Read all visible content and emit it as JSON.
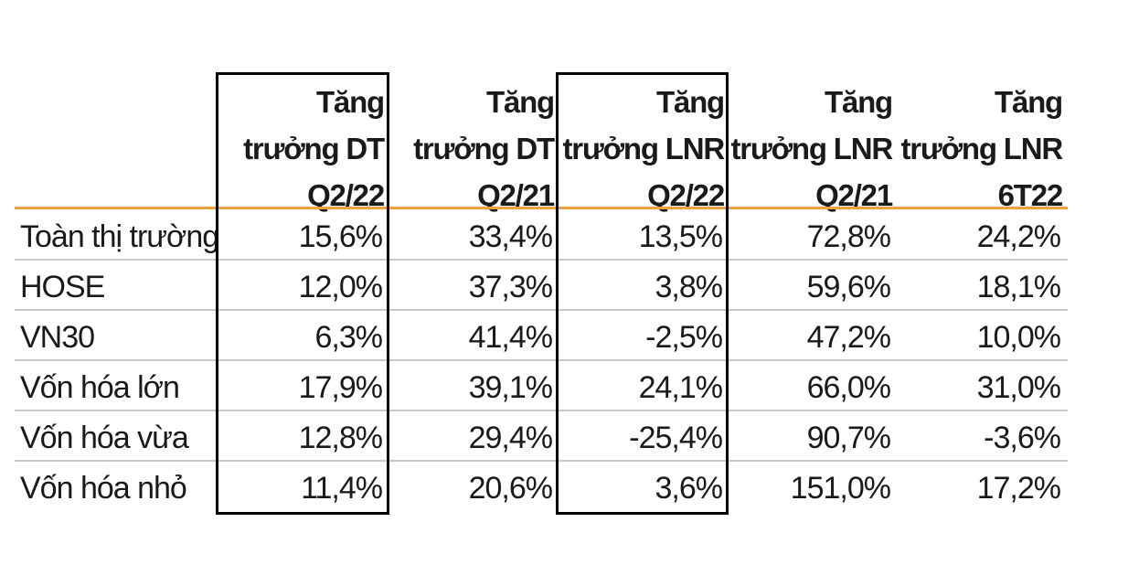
{
  "chart_data": {
    "type": "table",
    "columns": [
      [
        "Tăng",
        "trưởng DT",
        "Q2/22"
      ],
      [
        "Tăng",
        "trưởng DT",
        "Q2/21"
      ],
      [
        "Tăng",
        "trưởng LNR",
        "Q2/22"
      ],
      [
        "Tăng",
        "trưởng LNR",
        "Q2/21"
      ],
      [
        "Tăng",
        "trưởng LNR",
        "6T22"
      ]
    ],
    "rows": [
      {
        "label": "Toàn thị trường",
        "values": [
          "15,6%",
          "33,4%",
          "13,5%",
          "72,8%",
          "24,2%"
        ]
      },
      {
        "label": "HOSE",
        "values": [
          "12,0%",
          "37,3%",
          "3,8%",
          "59,6%",
          "18,1%"
        ]
      },
      {
        "label": "VN30",
        "values": [
          "6,3%",
          "41,4%",
          "-2,5%",
          "47,2%",
          "10,0%"
        ]
      },
      {
        "label": "Vốn hóa lớn",
        "values": [
          "17,9%",
          "39,1%",
          "24,1%",
          "66,0%",
          "31,0%"
        ]
      },
      {
        "label": "Vốn hóa vừa",
        "values": [
          "12,8%",
          "29,4%",
          "-25,4%",
          "90,7%",
          "-3,6%"
        ]
      },
      {
        "label": "Vốn hóa nhỏ",
        "values": [
          "11,4%",
          "20,6%",
          "3,6%",
          "151,0%",
          "17,2%"
        ]
      }
    ],
    "highlighted_columns": [
      0,
      2
    ]
  },
  "colors": {
    "header_rule": "#f0a040",
    "row_rule": "#c8c8c8",
    "highlight_border": "#000000"
  }
}
